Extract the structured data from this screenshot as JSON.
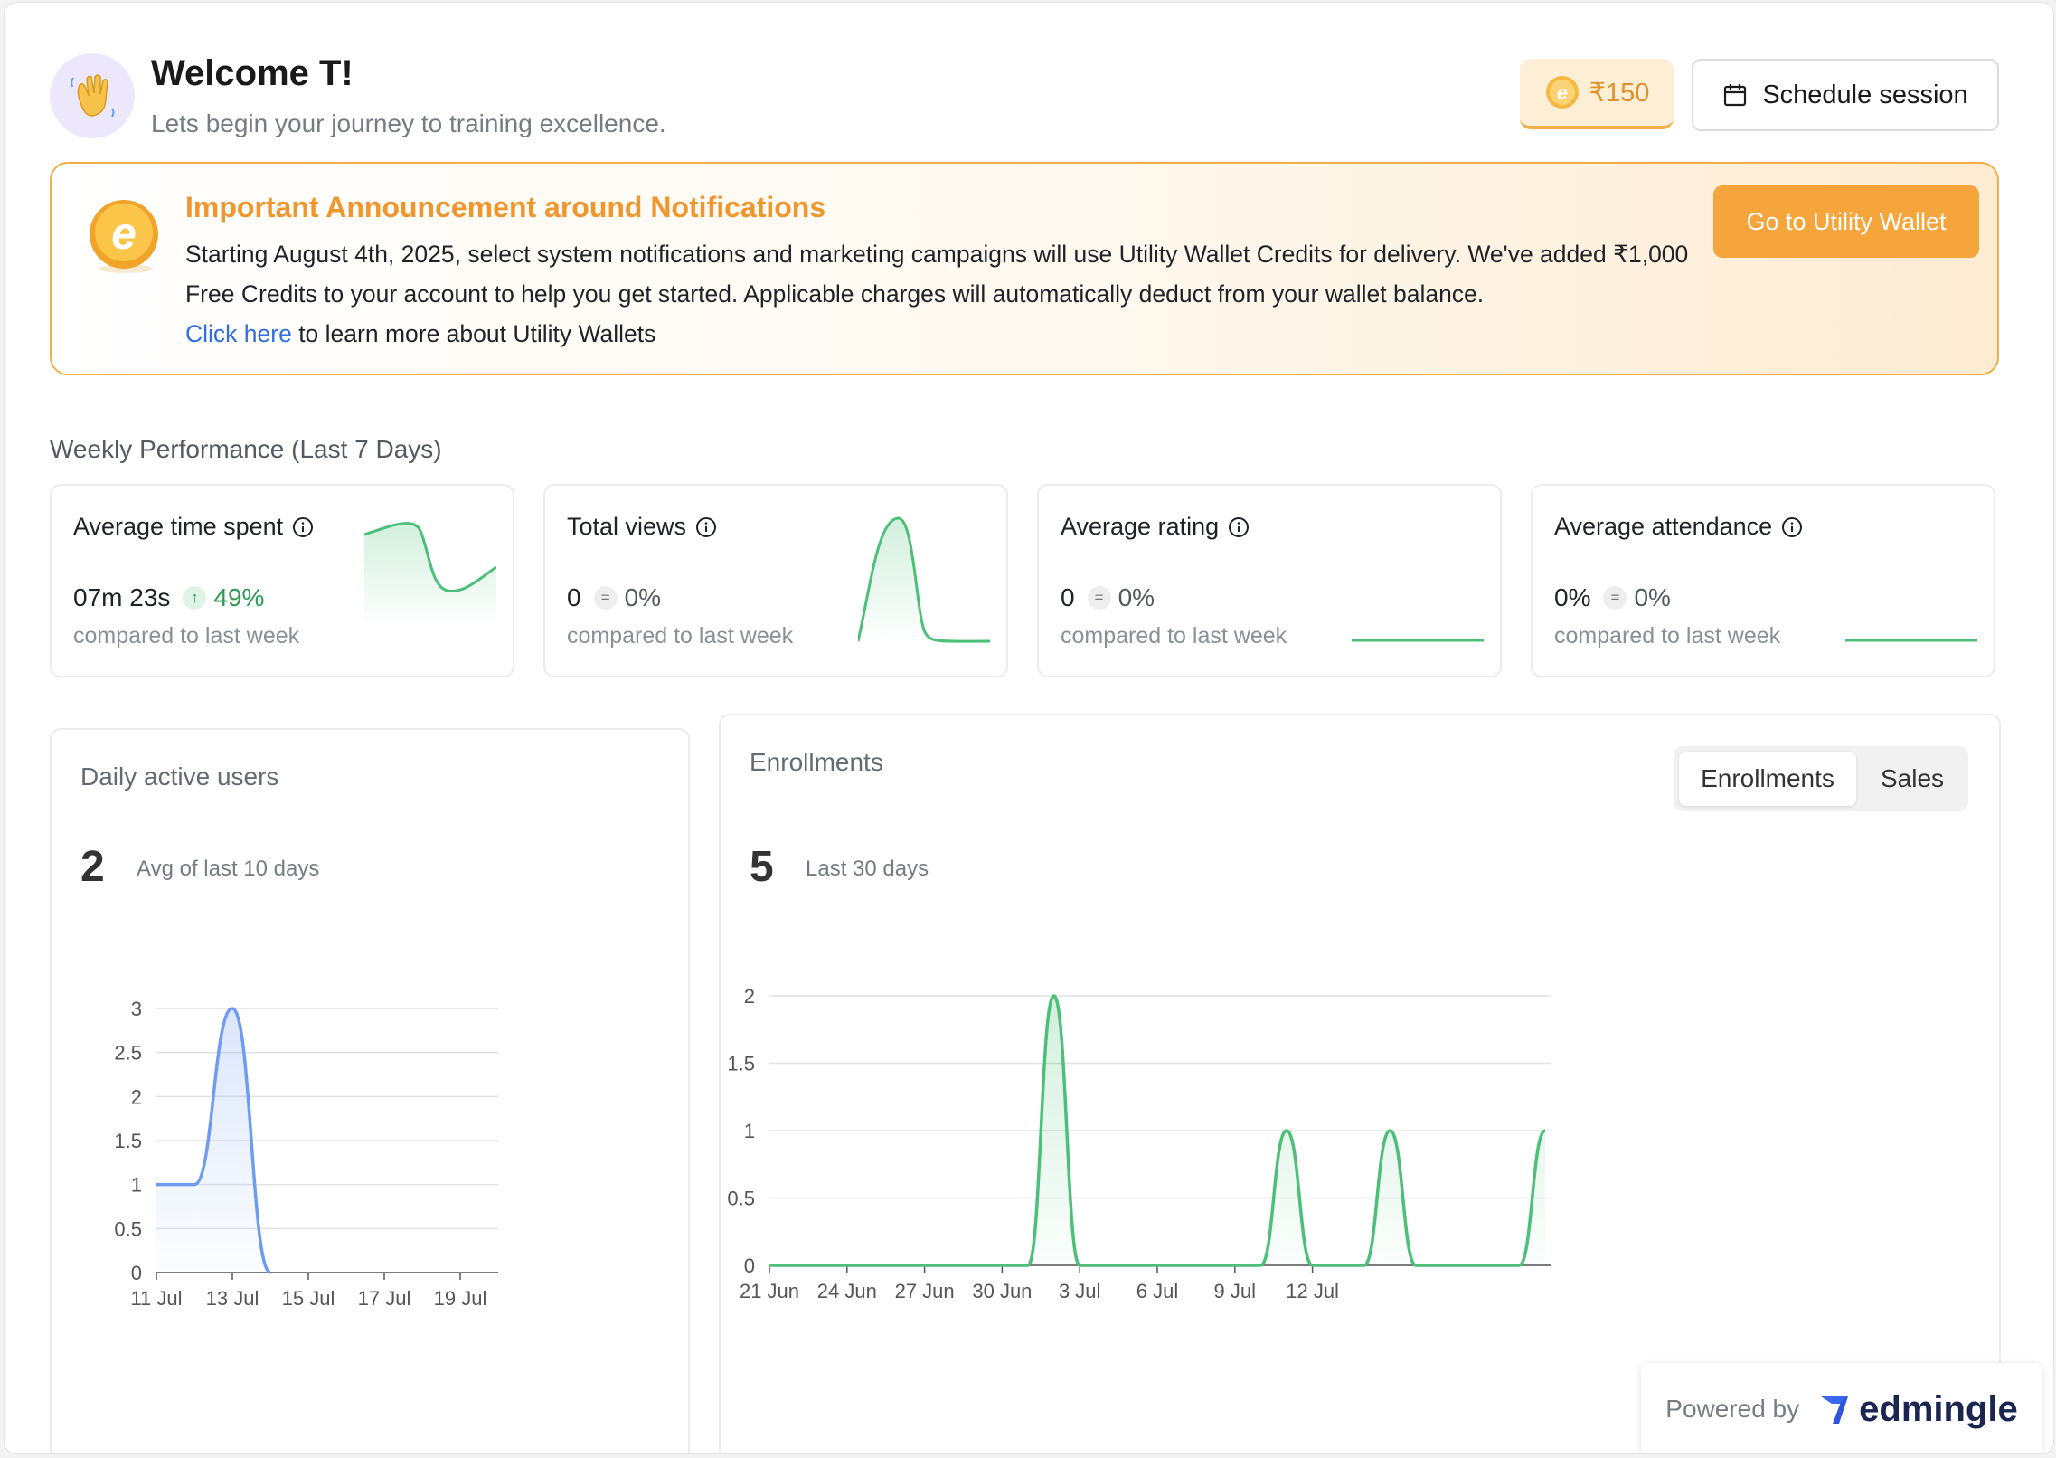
{
  "header": {
    "avatar_icon": "waving-hand-icon",
    "welcome": "Welcome T!",
    "subtitle": "Lets begin your journey to training excellence.",
    "credits": "₹150",
    "schedule_label": "Schedule session"
  },
  "announcement": {
    "title": "Important Announcement around Notifications",
    "body": "Starting August 4th, 2025, select system notifications and marketing campaigns will use Utility Wallet Credits for delivery. We've added ₹1,000 Free Credits to your account to help you get started. Applicable charges will automatically deduct from your wallet balance.",
    "link_text": "Click here",
    "link_suffix": " to learn more about Utility Wallets",
    "button": "Go to Utility Wallet"
  },
  "weekly": {
    "label": "Weekly Performance (Last 7 Days)",
    "compare_text": "compared to last week",
    "cards": [
      {
        "title": "Average time spent",
        "value": "07m 23s",
        "change": "49%",
        "trend": "up"
      },
      {
        "title": "Total views",
        "value": "0",
        "change": "0%",
        "trend": "flat"
      },
      {
        "title": "Average rating",
        "value": "0",
        "change": "0%",
        "trend": "flat"
      },
      {
        "title": "Average attendance",
        "value": "0%",
        "change": "0%",
        "trend": "flat"
      }
    ]
  },
  "dau": {
    "title": "Daily active users",
    "value": "2",
    "subtitle": "Avg of last 10 days"
  },
  "enrollments": {
    "title": "Enrollments",
    "value": "5",
    "subtitle": "Last 30 days",
    "toggle": [
      "Enrollments",
      "Sales"
    ],
    "toggle_active": "Enrollments"
  },
  "footer": {
    "powered_by": "Powered by",
    "brand": "edmingle"
  },
  "colors": {
    "accent_orange": "#f5a53c",
    "green_line": "#4cbf78",
    "blue_line": "#6f9cf0",
    "link_blue": "#2f6fe0"
  },
  "chart_data": [
    {
      "type": "area",
      "y_ticks": [
        "0",
        "0.5",
        "1",
        "1.5",
        "2",
        "2.5",
        "3"
      ],
      "ylim": [
        0,
        3
      ],
      "x_ticks": [
        "11 Jul",
        "13 Jul",
        "15 Jul",
        "17 Jul",
        "19 Jul"
      ],
      "x": [
        "11 Jul",
        "12 Jul",
        "13 Jul",
        "14 Jul"
      ],
      "series": [
        {
          "values": [
            1,
            1,
            3,
            0
          ]
        }
      ],
      "grid": true
    },
    {
      "type": "area",
      "y_ticks": [
        "0",
        "0.5",
        "1",
        "1.5",
        "2"
      ],
      "ylim": [
        0,
        2
      ],
      "x_ticks": [
        "21 Jun",
        "24 Jun",
        "27 Jun",
        "30 Jun",
        "3 Jul",
        "6 Jul",
        "9 Jul",
        "12 Jul"
      ],
      "x": [
        "21 Jun",
        "22 Jun",
        "23 Jun",
        "24 Jun",
        "25 Jun",
        "26 Jun",
        "27 Jun",
        "28 Jun",
        "29 Jun",
        "30 Jun",
        "1 Jul",
        "2 Jul",
        "3 Jul",
        "4 Jul",
        "5 Jul",
        "6 Jul",
        "7 Jul",
        "8 Jul",
        "9 Jul",
        "10 Jul",
        "11 Jul",
        "12 Jul",
        "13 Jul",
        "14 Jul",
        "15 Jul",
        "16 Jul",
        "17 Jul",
        "18 Jul",
        "19 Jul",
        "20 Jul",
        "21 Jul"
      ],
      "series": [
        {
          "values": [
            0,
            0,
            0,
            0,
            0,
            0,
            0,
            0,
            0,
            0,
            0,
            2,
            0,
            0,
            0,
            0,
            0,
            0,
            0,
            0,
            1,
            0,
            0,
            0,
            1,
            0,
            0,
            0,
            0,
            0,
            1
          ]
        }
      ],
      "grid": true
    }
  ]
}
